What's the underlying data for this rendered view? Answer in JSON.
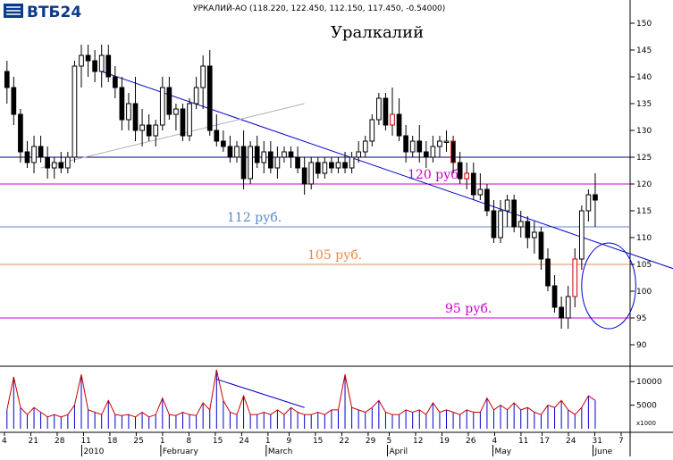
{
  "header": {
    "logo_text": "ВТБ24",
    "quote_line": "УРКАЛИЙ-АО (118.220, 122.450, 112.150, 117.450, -0.54000)",
    "chart_title": "Уралкалий"
  },
  "colors": {
    "candle": "#000000",
    "trend_main": "#0000cc",
    "trend_support": "#b0b0b0",
    "level_120": "#cc00cc",
    "level_112": "#5a8ac8",
    "level_105": "#e8884a",
    "level_95": "#cc00cc",
    "level_125": "#000080",
    "volume_line": "#cc0000",
    "volume_bar": "#0000cc",
    "ellipse": "#0000cc"
  },
  "chart_data": [
    {
      "type": "candlestick",
      "title": "Уралкалий",
      "ylim": [
        87,
        153
      ],
      "y_ticks": [
        90,
        95,
        100,
        105,
        110,
        115,
        120,
        125,
        130,
        135,
        140,
        145,
        150
      ],
      "grid": false,
      "horizontal_levels": [
        {
          "value": 125,
          "label": "",
          "color": "#000080"
        },
        {
          "value": 120,
          "label": "120 руб.",
          "color": "#cc00cc"
        },
        {
          "value": 112,
          "label": "112 руб.",
          "color": "#5a8ac8"
        },
        {
          "value": 105,
          "label": "105 руб.",
          "color": "#e8884a"
        },
        {
          "value": 95,
          "label": "95 руб.",
          "color": "#cc00cc"
        }
      ],
      "trendlines": [
        {
          "from": [
            14,
            141
          ],
          "to": [
            99,
            104
          ],
          "color": "#0000cc"
        },
        {
          "from": [
            5,
            123
          ],
          "to": [
            44,
            135
          ],
          "color": "#b0b0b0"
        }
      ],
      "annotation_ellipse": {
        "center": [
          89,
          101
        ],
        "half_width": 4,
        "half_height": 8
      },
      "x_day_labels": [
        "4",
        "21",
        "28",
        "11",
        "18",
        "25",
        "1",
        "8",
        "15",
        "24",
        "1",
        "9",
        "15",
        "22",
        "29",
        "5",
        "12",
        "19",
        "26",
        "4",
        "11",
        "17",
        "24",
        "31",
        "7"
      ],
      "x_month_labels": [
        "2010",
        "February",
        "March",
        "April",
        "May",
        "June"
      ],
      "ohlc": [
        [
          141,
          143,
          135,
          138
        ],
        [
          138,
          140,
          131,
          133
        ],
        [
          133,
          134,
          124,
          126
        ],
        [
          126,
          128,
          123,
          124
        ],
        [
          124,
          129,
          122,
          127
        ],
        [
          127,
          129,
          124,
          125
        ],
        [
          125,
          127,
          121,
          123
        ],
        [
          123,
          125,
          121,
          124
        ],
        [
          124,
          126,
          122,
          123
        ],
        [
          123,
          126,
          122,
          125
        ],
        [
          125,
          143,
          124,
          142
        ],
        [
          142,
          146,
          138,
          144
        ],
        [
          144,
          146,
          140,
          143
        ],
        [
          143,
          145,
          139,
          141
        ],
        [
          141,
          146,
          138,
          144
        ],
        [
          144,
          146,
          139,
          140
        ],
        [
          140,
          142,
          136,
          138
        ],
        [
          138,
          140,
          130,
          132
        ],
        [
          132,
          137,
          130,
          135
        ],
        [
          135,
          140,
          128,
          130
        ],
        [
          130,
          134,
          127,
          131
        ],
        [
          131,
          133,
          128,
          129
        ],
        [
          129,
          132,
          127,
          131
        ],
        [
          131,
          140,
          130,
          138
        ],
        [
          138,
          140,
          132,
          133
        ],
        [
          133,
          135,
          130,
          134
        ],
        [
          134,
          135,
          128,
          129
        ],
        [
          129,
          136,
          128,
          135
        ],
        [
          135,
          140,
          134,
          138
        ],
        [
          138,
          144,
          134,
          142
        ],
        [
          142,
          145,
          129,
          130
        ],
        [
          130,
          133,
          127,
          128
        ],
        [
          128,
          130,
          126,
          127
        ],
        [
          127,
          129,
          124,
          125
        ],
        [
          125,
          128,
          124,
          127
        ],
        [
          127,
          130,
          119,
          121
        ],
        [
          121,
          128,
          120,
          127
        ],
        [
          127,
          129,
          123,
          124
        ],
        [
          124,
          128,
          122,
          126
        ],
        [
          126,
          128,
          122,
          123
        ],
        [
          123,
          127,
          121,
          125
        ],
        [
          125,
          127,
          124,
          126
        ],
        [
          126,
          127,
          123,
          125
        ],
        [
          125,
          127,
          122,
          123
        ],
        [
          123,
          125,
          118,
          120
        ],
        [
          120,
          125,
          119,
          124
        ],
        [
          124,
          125,
          121,
          122
        ],
        [
          122,
          125,
          121,
          124
        ],
        [
          124,
          125,
          122,
          123
        ],
        [
          123,
          125,
          122,
          124
        ],
        [
          124,
          126,
          122,
          123
        ],
        [
          123,
          126,
          122,
          125
        ],
        [
          125,
          128,
          124,
          126
        ],
        [
          126,
          129,
          125,
          128
        ],
        [
          128,
          133,
          127,
          132
        ],
        [
          132,
          137,
          131,
          136
        ],
        [
          136,
          137,
          130,
          131
        ],
        [
          131,
          138,
          129,
          133
        ],
        [
          133,
          136,
          128,
          129
        ],
        [
          129,
          131,
          124,
          126
        ],
        [
          126,
          129,
          125,
          128
        ],
        [
          128,
          131,
          124,
          126
        ],
        [
          126,
          128,
          123,
          125
        ],
        [
          125,
          129,
          124,
          127
        ],
        [
          127,
          129,
          125,
          128
        ],
        [
          128,
          130,
          126,
          128
        ],
        [
          128,
          129,
          122,
          124
        ],
        [
          124,
          126,
          120,
          121
        ],
        [
          121,
          124,
          119,
          122
        ],
        [
          122,
          124,
          117,
          118
        ],
        [
          118,
          122,
          117,
          119
        ],
        [
          119,
          120,
          114,
          115
        ],
        [
          115,
          117,
          109,
          110
        ],
        [
          110,
          117,
          109,
          115
        ],
        [
          115,
          118,
          112,
          117
        ],
        [
          117,
          118,
          111,
          112
        ],
        [
          112,
          115,
          110,
          113
        ],
        [
          113,
          114,
          108,
          110
        ],
        [
          110,
          113,
          107,
          111
        ],
        [
          111,
          112,
          104,
          106
        ],
        [
          106,
          108,
          100,
          101
        ],
        [
          101,
          103,
          96,
          97
        ],
        [
          97,
          99,
          93,
          95
        ],
        [
          95,
          101,
          93,
          99
        ],
        [
          99,
          108,
          97,
          106
        ],
        [
          106,
          116,
          104,
          115
        ],
        [
          115,
          119,
          113,
          118
        ],
        [
          118,
          122,
          112,
          117
        ]
      ]
    },
    {
      "type": "bar",
      "y_ticks": [
        5000,
        10000
      ],
      "y_unit_label": "x1000",
      "ylim": [
        0,
        12500
      ],
      "trendline": {
        "from": [
          31,
          10500
        ],
        "to": [
          44,
          4500
        ]
      },
      "values": [
        4000,
        11000,
        4500,
        3000,
        4500,
        3500,
        2500,
        3000,
        2500,
        3000,
        5000,
        11500,
        4000,
        3500,
        3000,
        6000,
        3000,
        2800,
        3000,
        2500,
        3500,
        2500,
        3000,
        6500,
        3000,
        2800,
        3500,
        3000,
        2800,
        5500,
        4000,
        12500,
        6000,
        3500,
        3000,
        7000,
        3000,
        3000,
        3500,
        3000,
        4000,
        3000,
        4500,
        3500,
        3000,
        3000,
        3500,
        3000,
        4000,
        4000,
        11500,
        4500,
        4000,
        3500,
        4500,
        6000,
        3500,
        3000,
        3000,
        4000,
        3500,
        4000,
        3000,
        5500,
        3500,
        4000,
        3500,
        3000,
        4000,
        3500,
        3500,
        6500,
        4000,
        5000,
        4000,
        5500,
        4000,
        4500,
        3500,
        3000,
        5000,
        4500,
        6000,
        4000,
        3000,
        4500,
        7000,
        6000
      ]
    }
  ]
}
